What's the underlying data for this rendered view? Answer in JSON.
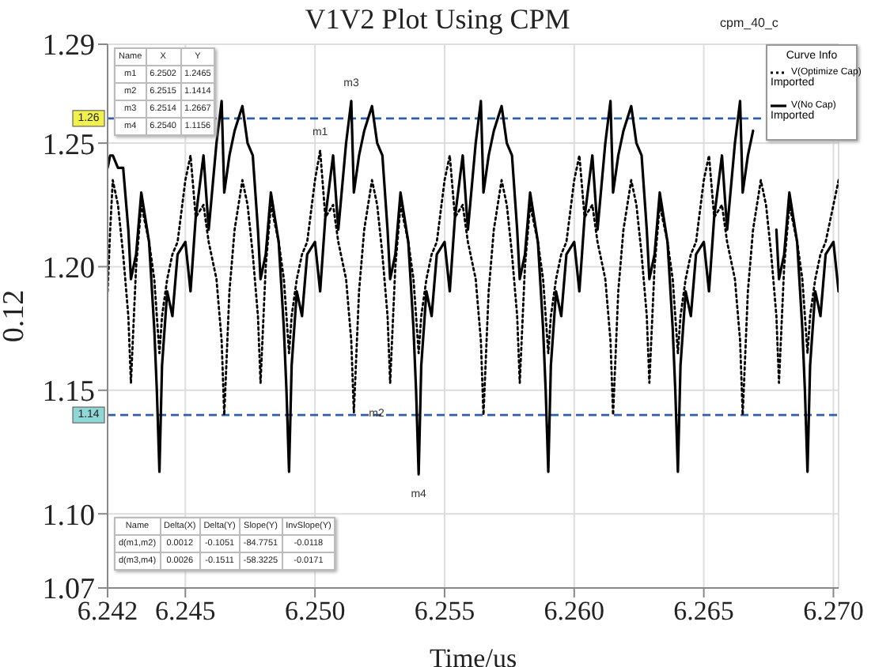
{
  "chart_data": {
    "type": "line",
    "title": "V1V2 Plot Using CPM",
    "xlabel": "Time/us",
    "ylabel": "0.12",
    "legend_title": "Curve Info",
    "legend": "top right",
    "grid": true,
    "marker": "none",
    "xlim": [
      6.242,
      6.2702
    ],
    "xticks": [
      6.242,
      6.245,
      {
        "value": 6.25,
        "label": "6.250"
      },
      6.255,
      {
        "value": 6.26,
        "label": "6.260"
      },
      6.265,
      {
        "value": 6.27,
        "label": "6.270"
      }
    ],
    "ylim": [
      1.07,
      1.29
    ],
    "yticks": [
      1.07,
      {
        "value": 1.1,
        "label": "1.10"
      },
      1.15,
      {
        "value": 1.2,
        "label": "1.20"
      },
      1.25,
      1.29
    ],
    "x": [
      6.242,
      6.2421,
      6.2422,
      6.2424,
      6.2426,
      6.2428,
      6.2429,
      6.2431,
      6.2433,
      6.2436,
      6.2438,
      6.2439,
      6.244,
      6.2441,
      6.2443,
      6.2445,
      6.2447,
      6.245,
      6.2452,
      6.2454,
      6.2457,
      6.2459,
      6.2462,
      6.2464,
      6.2465,
      6.2467,
      6.2469,
      6.2472,
      6.2474,
      6.2476,
      6.2478,
      6.2479,
      6.2481,
      6.2483,
      6.2486,
      6.2488,
      6.2489,
      6.249,
      6.2491,
      6.2493,
      6.2495,
      6.2497,
      6.25,
      6.2502,
      6.2504,
      6.2507,
      6.2509,
      6.2512,
      6.2514,
      6.2515,
      6.2517,
      6.2519,
      6.2522,
      6.2524,
      6.2526,
      6.2528,
      6.2529,
      6.2531,
      6.2533,
      6.2536,
      6.2538,
      6.2539,
      6.254,
      6.2541,
      6.2543,
      6.2545,
      6.2547,
      6.255,
      6.2552,
      6.2554,
      6.2557,
      6.2559,
      6.2562,
      6.2564,
      6.2565,
      6.2567,
      6.2569,
      6.2572,
      6.2574,
      6.2576,
      6.2578,
      6.2579,
      6.2581,
      6.2583,
      6.2586,
      6.2588,
      6.2589,
      6.259,
      6.2591,
      6.2593,
      6.2595,
      6.2597,
      6.26,
      6.2602,
      6.2604,
      6.2607,
      6.2609,
      6.2612,
      6.2614,
      6.2615,
      6.2617,
      6.2619,
      6.2622,
      6.2624,
      6.2626,
      6.2628,
      6.2629,
      6.2631,
      6.2633,
      6.2636,
      6.2638,
      6.2639,
      6.264,
      6.2641,
      6.2643,
      6.2645,
      6.2647,
      6.265,
      6.2652,
      6.2654,
      6.2657,
      6.2659,
      6.2662,
      6.2664,
      6.2665,
      6.2667,
      6.2669,
      6.2672,
      6.2674,
      6.2676,
      6.2678,
      6.2679,
      6.2681,
      6.2683,
      6.2686,
      6.2688,
      6.2689,
      6.269,
      6.2691,
      6.2693,
      6.2695,
      6.2697,
      6.27,
      6.2702
    ],
    "series": [
      {
        "name": "V(Optimize Cap)",
        "color": "#000000",
        "line_style": "dotted",
        "values": [
          1.19,
          1.215,
          1.235,
          1.225,
          1.205,
          1.18,
          1.153,
          1.2,
          1.225,
          1.21,
          1.195,
          1.18,
          1.165,
          1.18,
          1.195,
          1.205,
          1.21,
          1.235,
          1.245,
          1.22,
          1.225,
          1.21,
          1.195,
          1.17,
          1.14,
          1.19,
          1.215,
          1.235,
          1.225,
          1.205,
          1.18,
          1.153,
          1.2,
          1.225,
          1.21,
          1.195,
          1.18,
          1.165,
          1.18,
          1.195,
          1.205,
          1.21,
          1.235,
          1.247,
          1.22,
          1.225,
          1.21,
          1.195,
          1.17,
          1.141,
          1.19,
          1.215,
          1.235,
          1.225,
          1.205,
          1.18,
          1.153,
          1.2,
          1.225,
          1.21,
          1.195,
          1.18,
          1.165,
          1.18,
          1.195,
          1.205,
          1.21,
          1.235,
          1.245,
          1.22,
          1.225,
          1.21,
          1.195,
          1.17,
          1.14,
          1.19,
          1.215,
          1.235,
          1.225,
          1.205,
          1.18,
          1.153,
          1.2,
          1.225,
          1.21,
          1.195,
          1.18,
          1.165,
          1.18,
          1.195,
          1.205,
          1.21,
          1.235,
          1.245,
          1.22,
          1.225,
          1.21,
          1.195,
          1.17,
          1.14,
          1.19,
          1.215,
          1.235,
          1.225,
          1.205,
          1.18,
          1.153,
          1.2,
          1.225,
          1.21,
          1.195,
          1.18,
          1.165,
          1.18,
          1.195,
          1.205,
          1.21,
          1.235,
          1.245,
          1.22,
          1.225,
          1.21,
          1.195,
          1.17,
          1.14,
          1.19,
          1.215,
          1.235,
          1.225,
          1.205,
          1.18,
          1.153,
          1.2,
          1.225,
          1.21,
          1.195,
          1.18,
          1.165,
          1.18,
          1.195,
          1.205,
          1.21,
          1.225,
          1.235
        ]
      },
      {
        "name": "V(No Cap)",
        "color": "#000000",
        "line_style": "solid",
        "values": [
          1.24,
          1.245,
          1.245,
          1.24,
          1.24,
          1.215,
          1.195,
          1.205,
          1.23,
          1.21,
          1.175,
          1.15,
          1.117,
          1.16,
          1.19,
          1.18,
          1.205,
          1.21,
          1.19,
          1.22,
          1.245,
          1.215,
          1.25,
          1.267,
          1.23,
          1.245,
          1.255,
          1.265,
          1.25,
          1.245,
          1.215,
          1.195,
          1.205,
          1.23,
          1.21,
          1.175,
          1.15,
          1.117,
          1.16,
          1.19,
          1.18,
          1.205,
          1.21,
          1.19,
          1.22,
          1.245,
          1.215,
          1.25,
          1.267,
          1.23,
          1.245,
          1.255,
          1.265,
          1.25,
          1.245,
          1.215,
          1.195,
          1.205,
          1.23,
          1.21,
          1.175,
          1.15,
          1.116,
          1.16,
          1.19,
          1.18,
          1.205,
          1.21,
          1.19,
          1.22,
          1.245,
          1.215,
          1.25,
          1.267,
          1.23,
          1.245,
          1.255,
          1.265,
          1.25,
          1.245,
          1.215,
          1.195,
          1.205,
          1.23,
          1.21,
          1.175,
          1.15,
          1.117,
          1.16,
          1.19,
          1.18,
          1.205,
          1.21,
          1.19,
          1.22,
          1.245,
          1.215,
          1.25,
          1.267,
          1.23,
          1.245,
          1.255,
          1.265,
          1.25,
          1.245,
          1.215,
          1.195,
          1.205,
          1.23,
          1.21,
          1.175,
          1.15,
          1.117,
          1.16,
          1.19,
          1.18,
          1.205,
          1.21,
          1.19,
          1.22,
          1.245,
          1.215,
          1.25,
          1.267,
          1.23,
          1.245,
          1.255,
          null,
          null,
          null,
          1.215,
          1.195,
          1.205,
          1.23,
          1.21,
          1.175,
          1.15,
          1.117,
          1.16,
          1.19,
          1.18,
          1.205,
          1.21,
          1.19
        ]
      }
    ],
    "ref_lines": [
      {
        "axis": "y",
        "value": 1.26,
        "label": "1.26",
        "color": "#2f5fa8",
        "line_style": "dashed"
      },
      {
        "axis": "y",
        "value": 1.14,
        "label": "1.14",
        "color": "#2f5fa8",
        "line_style": "dashed"
      }
    ],
    "annotations": [
      "cpm_40_c",
      "Imported",
      "Imported",
      "Name\tX\tY",
      "m1\t6.2502\t1.2465",
      "m2\t6.2515\t1.1414",
      "m3\t6.2514\t1.2667",
      "m4\t6.2540\t1.1156",
      "Name\tDelta(X)\tDelta(Y)\tSlope(Y)\tInvSlope(Y)",
      "d(m1,m2)\t0.0012\t-0.1051\t-84.7751\t-0.0118",
      "d(m3,m4)\t0.0026\t-0.1511\t-58.3225\t-0.0171",
      {
        "text": "m1",
        "x": 6.2502,
        "y": 1.247
      },
      {
        "text": "m2",
        "x": 6.2515,
        "y": 1.141
      },
      {
        "text": "m3",
        "x": 6.2514,
        "y": 1.267
      },
      {
        "text": "m4",
        "x": 6.254,
        "y": 1.116
      }
    ]
  }
}
